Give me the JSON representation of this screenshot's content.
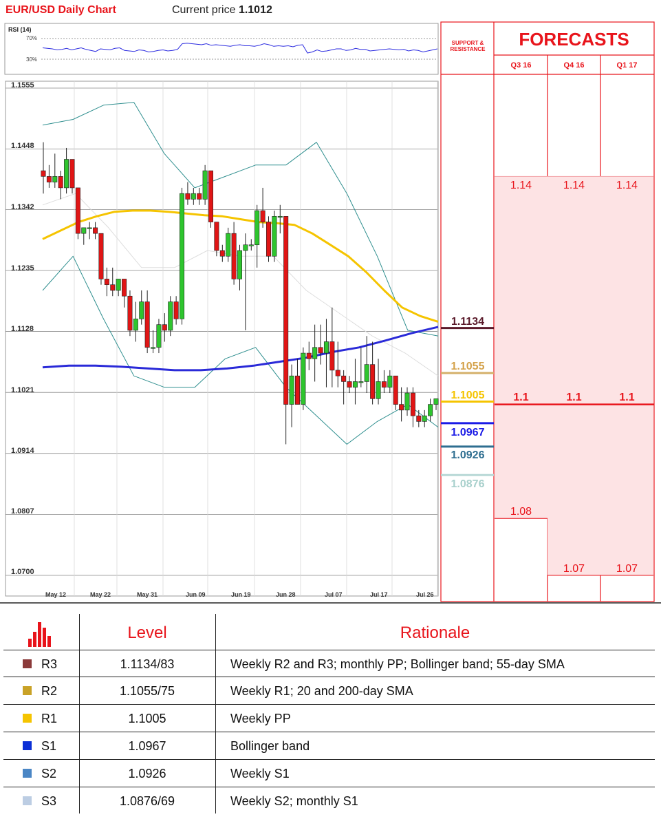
{
  "header": {
    "title": "EUR/USD Daily Chart",
    "price_label": "Current price",
    "price_value": "1.1012"
  },
  "rsi": {
    "label": "RSI (14)",
    "ticks": [
      "70%",
      "30%"
    ],
    "values": [
      52,
      51,
      50,
      48,
      49,
      51,
      48,
      50,
      52,
      49,
      47,
      45,
      50,
      49,
      48,
      51,
      52,
      47,
      46,
      45,
      48,
      47,
      44,
      45,
      47,
      48,
      46,
      47,
      49,
      60,
      61,
      60,
      59,
      58,
      60,
      57,
      58,
      57,
      56,
      55,
      57,
      58,
      56,
      56,
      55,
      57,
      60,
      58,
      55,
      56,
      55,
      56,
      54,
      57,
      58,
      42,
      44,
      48,
      45,
      46,
      48,
      50,
      50,
      47,
      48,
      51,
      49,
      49,
      46,
      47,
      48,
      49,
      50,
      49,
      48,
      49,
      46,
      48,
      47,
      44,
      46,
      48,
      50
    ]
  },
  "chart_data": {
    "type": "candlestick",
    "title": "EUR/USD Daily Chart",
    "y_ticks": [
      "1.1555",
      "1.1448",
      "1.1342",
      "1.1235",
      "1.1128",
      "1.1021",
      "1.0914",
      "1.0807",
      "1.0700"
    ],
    "ylim": [
      1.07,
      1.1555
    ],
    "x_ticks": [
      "May 12",
      "May 22",
      "May 31",
      "Jun 09",
      "Jun 19",
      "Jun 28",
      "Jul 07",
      "Jul 17",
      "Jul 26"
    ],
    "up_color": "#2ec52e",
    "down_color": "#e01515",
    "candles": [
      [
        1.141,
        1.146,
        1.137,
        1.14
      ],
      [
        1.14,
        1.142,
        1.138,
        1.139
      ],
      [
        1.139,
        1.144,
        1.138,
        1.14
      ],
      [
        1.14,
        1.141,
        1.136,
        1.138
      ],
      [
        1.138,
        1.145,
        1.137,
        1.143
      ],
      [
        1.143,
        1.143,
        1.137,
        1.138
      ],
      [
        1.138,
        1.138,
        1.129,
        1.13
      ],
      [
        1.13,
        1.131,
        1.128,
        1.131
      ],
      [
        1.131,
        1.132,
        1.129,
        1.131
      ],
      [
        1.131,
        1.132,
        1.129,
        1.13
      ],
      [
        1.13,
        1.13,
        1.121,
        1.122
      ],
      [
        1.122,
        1.124,
        1.119,
        1.121
      ],
      [
        1.121,
        1.124,
        1.119,
        1.12
      ],
      [
        1.12,
        1.122,
        1.119,
        1.122
      ],
      [
        1.122,
        1.122,
        1.117,
        1.119
      ],
      [
        1.119,
        1.12,
        1.112,
        1.113
      ],
      [
        1.113,
        1.118,
        1.111,
        1.115
      ],
      [
        1.115,
        1.12,
        1.114,
        1.118
      ],
      [
        1.118,
        1.12,
        1.109,
        1.11
      ],
      [
        1.11,
        1.113,
        1.109,
        1.11
      ],
      [
        1.11,
        1.115,
        1.109,
        1.114
      ],
      [
        1.114,
        1.116,
        1.111,
        1.113
      ],
      [
        1.113,
        1.119,
        1.112,
        1.118
      ],
      [
        1.118,
        1.119,
        1.114,
        1.115
      ],
      [
        1.115,
        1.138,
        1.114,
        1.137
      ],
      [
        1.137,
        1.139,
        1.135,
        1.136
      ],
      [
        1.136,
        1.138,
        1.135,
        1.137
      ],
      [
        1.137,
        1.138,
        1.135,
        1.136
      ],
      [
        1.136,
        1.142,
        1.135,
        1.141
      ],
      [
        1.141,
        1.141,
        1.131,
        1.132
      ],
      [
        1.132,
        1.132,
        1.126,
        1.127
      ],
      [
        1.127,
        1.128,
        1.125,
        1.126
      ],
      [
        1.126,
        1.131,
        1.125,
        1.13
      ],
      [
        1.13,
        1.132,
        1.121,
        1.122
      ],
      [
        1.122,
        1.128,
        1.12,
        1.127
      ],
      [
        1.127,
        1.13,
        1.113,
        1.128
      ],
      [
        1.128,
        1.129,
        1.127,
        1.128
      ],
      [
        1.128,
        1.135,
        1.124,
        1.134
      ],
      [
        1.134,
        1.138,
        1.131,
        1.132
      ],
      [
        1.132,
        1.133,
        1.125,
        1.126
      ],
      [
        1.126,
        1.134,
        1.125,
        1.133
      ],
      [
        1.133,
        1.135,
        1.13,
        1.133
      ],
      [
        1.133,
        1.133,
        1.093,
        1.1
      ],
      [
        1.1,
        1.107,
        1.096,
        1.105
      ],
      [
        1.105,
        1.108,
        1.1,
        1.1
      ],
      [
        1.1,
        1.11,
        1.099,
        1.109
      ],
      [
        1.109,
        1.111,
        1.106,
        1.108
      ],
      [
        1.108,
        1.114,
        1.104,
        1.11
      ],
      [
        1.11,
        1.114,
        1.107,
        1.109
      ],
      [
        1.109,
        1.115,
        1.103,
        1.111
      ],
      [
        1.111,
        1.117,
        1.103,
        1.106
      ],
      [
        1.106,
        1.111,
        1.103,
        1.105
      ],
      [
        1.105,
        1.106,
        1.1,
        1.104
      ],
      [
        1.104,
        1.105,
        1.102,
        1.103
      ],
      [
        1.103,
        1.108,
        1.1,
        1.104
      ],
      [
        1.104,
        1.11,
        1.103,
        1.104
      ],
      [
        1.104,
        1.112,
        1.102,
        1.107
      ],
      [
        1.107,
        1.111,
        1.1,
        1.101
      ],
      [
        1.101,
        1.108,
        1.1,
        1.104
      ],
      [
        1.104,
        1.106,
        1.102,
        1.103
      ],
      [
        1.103,
        1.106,
        1.102,
        1.105
      ],
      [
        1.105,
        1.105,
        1.099,
        1.1
      ],
      [
        1.1,
        1.103,
        1.097,
        1.099
      ],
      [
        1.099,
        1.103,
        1.098,
        1.102
      ],
      [
        1.102,
        1.103,
        1.096,
        1.098
      ],
      [
        1.098,
        1.099,
        1.096,
        1.097
      ],
      [
        1.097,
        1.099,
        1.096,
        1.098
      ],
      [
        1.098,
        1.101,
        1.097,
        1.1
      ],
      [
        1.1,
        1.101,
        1.099,
        1.101
      ]
    ],
    "sma55": [
      1.129,
      1.1305,
      1.132,
      1.133,
      1.1338,
      1.134,
      1.134,
      1.1338,
      1.1335,
      1.1332,
      1.133,
      1.1325,
      1.132,
      1.1318,
      1.1315,
      1.13,
      1.128,
      1.126,
      1.1232,
      1.12,
      1.117,
      1.1155,
      1.1145
    ],
    "sma200": [
      1.1065,
      1.1068,
      1.1068,
      1.1066,
      1.1063,
      1.106,
      1.106,
      1.1063,
      1.1068,
      1.1075,
      1.1082,
      1.1092,
      1.11,
      1.1112,
      1.1125,
      1.1136
    ],
    "boll_upper": [
      1.149,
      1.15,
      1.1525,
      1.153,
      1.144,
      1.138,
      1.14,
      1.142,
      1.142,
      1.146,
      1.137,
      1.126,
      1.113,
      1.112
    ],
    "boll_lower": [
      1.12,
      1.126,
      1.115,
      1.105,
      1.103,
      1.103,
      1.108,
      1.11,
      1.103,
      1.098,
      1.093,
      1.097,
      1.1,
      1.096
    ],
    "boll_mid": [
      1.135,
      1.137,
      1.131,
      1.124,
      1.124,
      1.127,
      1.126,
      1.126,
      1.12,
      1.116,
      1.112,
      1.109,
      1.105
    ]
  },
  "support_resistance": {
    "header_line1": "SUPPORT &",
    "header_line2": "RESISTANCE",
    "levels": [
      {
        "value": 1.1134,
        "label": "1.1134",
        "color": "#5a1a2a",
        "text_color": "#5a1a2a"
      },
      {
        "value": 1.1055,
        "label": "1.1055",
        "color": "#d4b06a",
        "text_color": "#d4a24a"
      },
      {
        "value": 1.1005,
        "label": "1.1005",
        "color": "#f5c400",
        "text_color": "#f5c400"
      },
      {
        "value": 1.0967,
        "label": "1.0967",
        "color": "#1a1ae6",
        "text_color": "#1a1ae6"
      },
      {
        "value": 1.0926,
        "label": "1.0926",
        "color": "#2e6e90",
        "text_color": "#2e6e90"
      },
      {
        "value": 1.0876,
        "label": "1.0876",
        "color": "#b8d8d6",
        "text_color": "#a8d0cc"
      }
    ]
  },
  "forecasts": {
    "title": "FORECASTS",
    "quarters": [
      "Q3 16",
      "Q4 16",
      "Q1 17"
    ],
    "range_high": [
      "1.14",
      "1.14",
      "1.14"
    ],
    "median": [
      "1.1",
      "1.1",
      "1.1"
    ],
    "range_low": [
      "1.08",
      "1.07",
      "1.07"
    ]
  },
  "table": {
    "col_level": "Level",
    "col_rationale": "Rationale",
    "rows": [
      {
        "code": "R3",
        "level": "1.1134/83",
        "rationale": "Weekly R2 and R3;  monthly PP; Bollinger band; 55-day SMA",
        "color": "#8b3a3a"
      },
      {
        "code": "R2",
        "level": "1.1055/75",
        "rationale": "Weekly R1; 20 and 200-day SMA",
        "color": "#c9a227"
      },
      {
        "code": "R1",
        "level": "1.1005",
        "rationale": "Weekly PP",
        "color": "#f5c400"
      },
      {
        "code": "S1",
        "level": "1.0967",
        "rationale": "Bollinger band",
        "color": "#0b2fd6"
      },
      {
        "code": "S2",
        "level": "1.0926",
        "rationale": "Weekly S1",
        "color": "#4a86c5"
      },
      {
        "code": "S3",
        "level": "1.0876/69",
        "rationale": "Weekly S2; monthly S1",
        "color": "#bccde3"
      }
    ]
  }
}
